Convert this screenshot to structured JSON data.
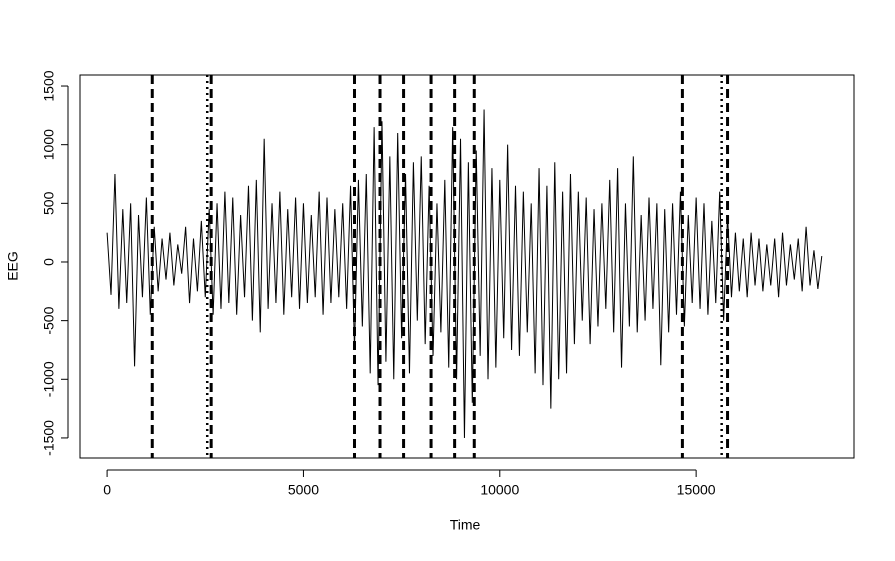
{
  "chart_data": {
    "type": "line",
    "x_label": "Time",
    "y_label": "EEG",
    "x": [
      0,
      100,
      200,
      300,
      400,
      500,
      600,
      700,
      800,
      900,
      1000,
      1100,
      1200,
      1300,
      1400,
      1500,
      1600,
      1700,
      1800,
      1900,
      2000,
      2100,
      2200,
      2300,
      2400,
      2500,
      2600,
      2700,
      2800,
      2900,
      3000,
      3100,
      3200,
      3300,
      3400,
      3500,
      3600,
      3700,
      3800,
      3900,
      4000,
      4100,
      4200,
      4300,
      4400,
      4500,
      4600,
      4700,
      4800,
      4900,
      5000,
      5100,
      5200,
      5300,
      5400,
      5500,
      5600,
      5700,
      5800,
      5900,
      6000,
      6100,
      6200,
      6300,
      6400,
      6500,
      6600,
      6700,
      6800,
      6900,
      7000,
      7100,
      7200,
      7300,
      7400,
      7500,
      7600,
      7700,
      7800,
      7900,
      8000,
      8100,
      8200,
      8300,
      8400,
      8500,
      8600,
      8700,
      8800,
      8900,
      9000,
      9100,
      9200,
      9300,
      9400,
      9500,
      9600,
      9700,
      9800,
      9900,
      10000,
      10100,
      10200,
      10300,
      10400,
      10500,
      10600,
      10700,
      10800,
      10900,
      11000,
      11100,
      11200,
      11300,
      11400,
      11500,
      11600,
      11700,
      11800,
      11900,
      12000,
      12100,
      12200,
      12300,
      12400,
      12500,
      12600,
      12700,
      12800,
      12900,
      13000,
      13100,
      13200,
      13300,
      13400,
      13500,
      13600,
      13700,
      13800,
      13900,
      14000,
      14100,
      14200,
      14300,
      14400,
      14500,
      14600,
      14700,
      14800,
      14900,
      15000,
      15100,
      15200,
      15300,
      15400,
      15500,
      15600,
      15700,
      15800,
      15900,
      16000,
      16100,
      16200,
      16300,
      16400,
      16500,
      16600,
      16700,
      16800,
      16900,
      17000,
      17100,
      17200,
      17300,
      17400,
      17500,
      17600,
      17700,
      17800,
      17900,
      18000,
      18100,
      18200
    ],
    "series": [
      {
        "color": "#000000",
        "values": [
          250,
          -280,
          750,
          -400,
          450,
          -350,
          500,
          -890,
          400,
          -300,
          550,
          -450,
          300,
          -250,
          200,
          -150,
          250,
          -200,
          150,
          -100,
          300,
          -350,
          200,
          -250,
          350,
          -300,
          450,
          -450,
          500,
          -400,
          600,
          -350,
          550,
          -450,
          400,
          -300,
          650,
          -500,
          700,
          -600,
          1050,
          -400,
          500,
          -350,
          600,
          -450,
          450,
          -300,
          550,
          -400,
          500,
          -350,
          400,
          -300,
          600,
          -450,
          550,
          -350,
          450,
          -300,
          500,
          -400,
          650,
          -750,
          700,
          -550,
          750,
          -950,
          1150,
          -1050,
          1200,
          -850,
          900,
          -1000,
          1100,
          -650,
          750,
          -950,
          850,
          -500,
          900,
          -700,
          650,
          -800,
          500,
          -600,
          700,
          -900,
          1150,
          -1000,
          1050,
          -1500,
          850,
          -1200,
          950,
          -800,
          1300,
          -1000,
          800,
          -900,
          700,
          -650,
          1000,
          -750,
          650,
          -800,
          600,
          -600,
          500,
          -950,
          800,
          -1050,
          650,
          -1250,
          850,
          -1000,
          600,
          -950,
          750,
          -700,
          600,
          -500,
          550,
          -700,
          450,
          -550,
          500,
          -400,
          700,
          -600,
          800,
          -900,
          500,
          -550,
          900,
          -600,
          400,
          -500,
          550,
          -400,
          500,
          -880,
          450,
          -600,
          500,
          -450,
          600,
          -550,
          400,
          -350,
          550,
          -400,
          500,
          -450,
          350,
          -350,
          600,
          -500,
          400,
          -300,
          250,
          -250,
          200,
          -300,
          250,
          -200,
          200,
          -250,
          150,
          -200,
          200,
          -300,
          250,
          -200,
          150,
          -150,
          200,
          -250,
          300,
          -200,
          100,
          -230,
          50
        ]
      }
    ],
    "vlines": [
      {
        "x": 1150,
        "style": "dashed"
      },
      {
        "x": 2550,
        "style": "dotted"
      },
      {
        "x": 2650,
        "style": "dashed"
      },
      {
        "x": 6300,
        "style": "dashed"
      },
      {
        "x": 6950,
        "style": "dashed"
      },
      {
        "x": 7550,
        "style": "dashed"
      },
      {
        "x": 8250,
        "style": "dashed"
      },
      {
        "x": 8850,
        "style": "dashed"
      },
      {
        "x": 9350,
        "style": "dashed"
      },
      {
        "x": 14650,
        "style": "dashed"
      },
      {
        "x": 15650,
        "style": "dotted"
      },
      {
        "x": 15800,
        "style": "dashed"
      }
    ],
    "xlim": [
      -690,
      19020
    ],
    "ylim": [
      -1671,
      1594
    ],
    "xticks": [
      0,
      5000,
      10000,
      15000
    ],
    "yticks": [
      -1500,
      -1000,
      -500,
      0,
      500,
      1000,
      1500
    ]
  }
}
